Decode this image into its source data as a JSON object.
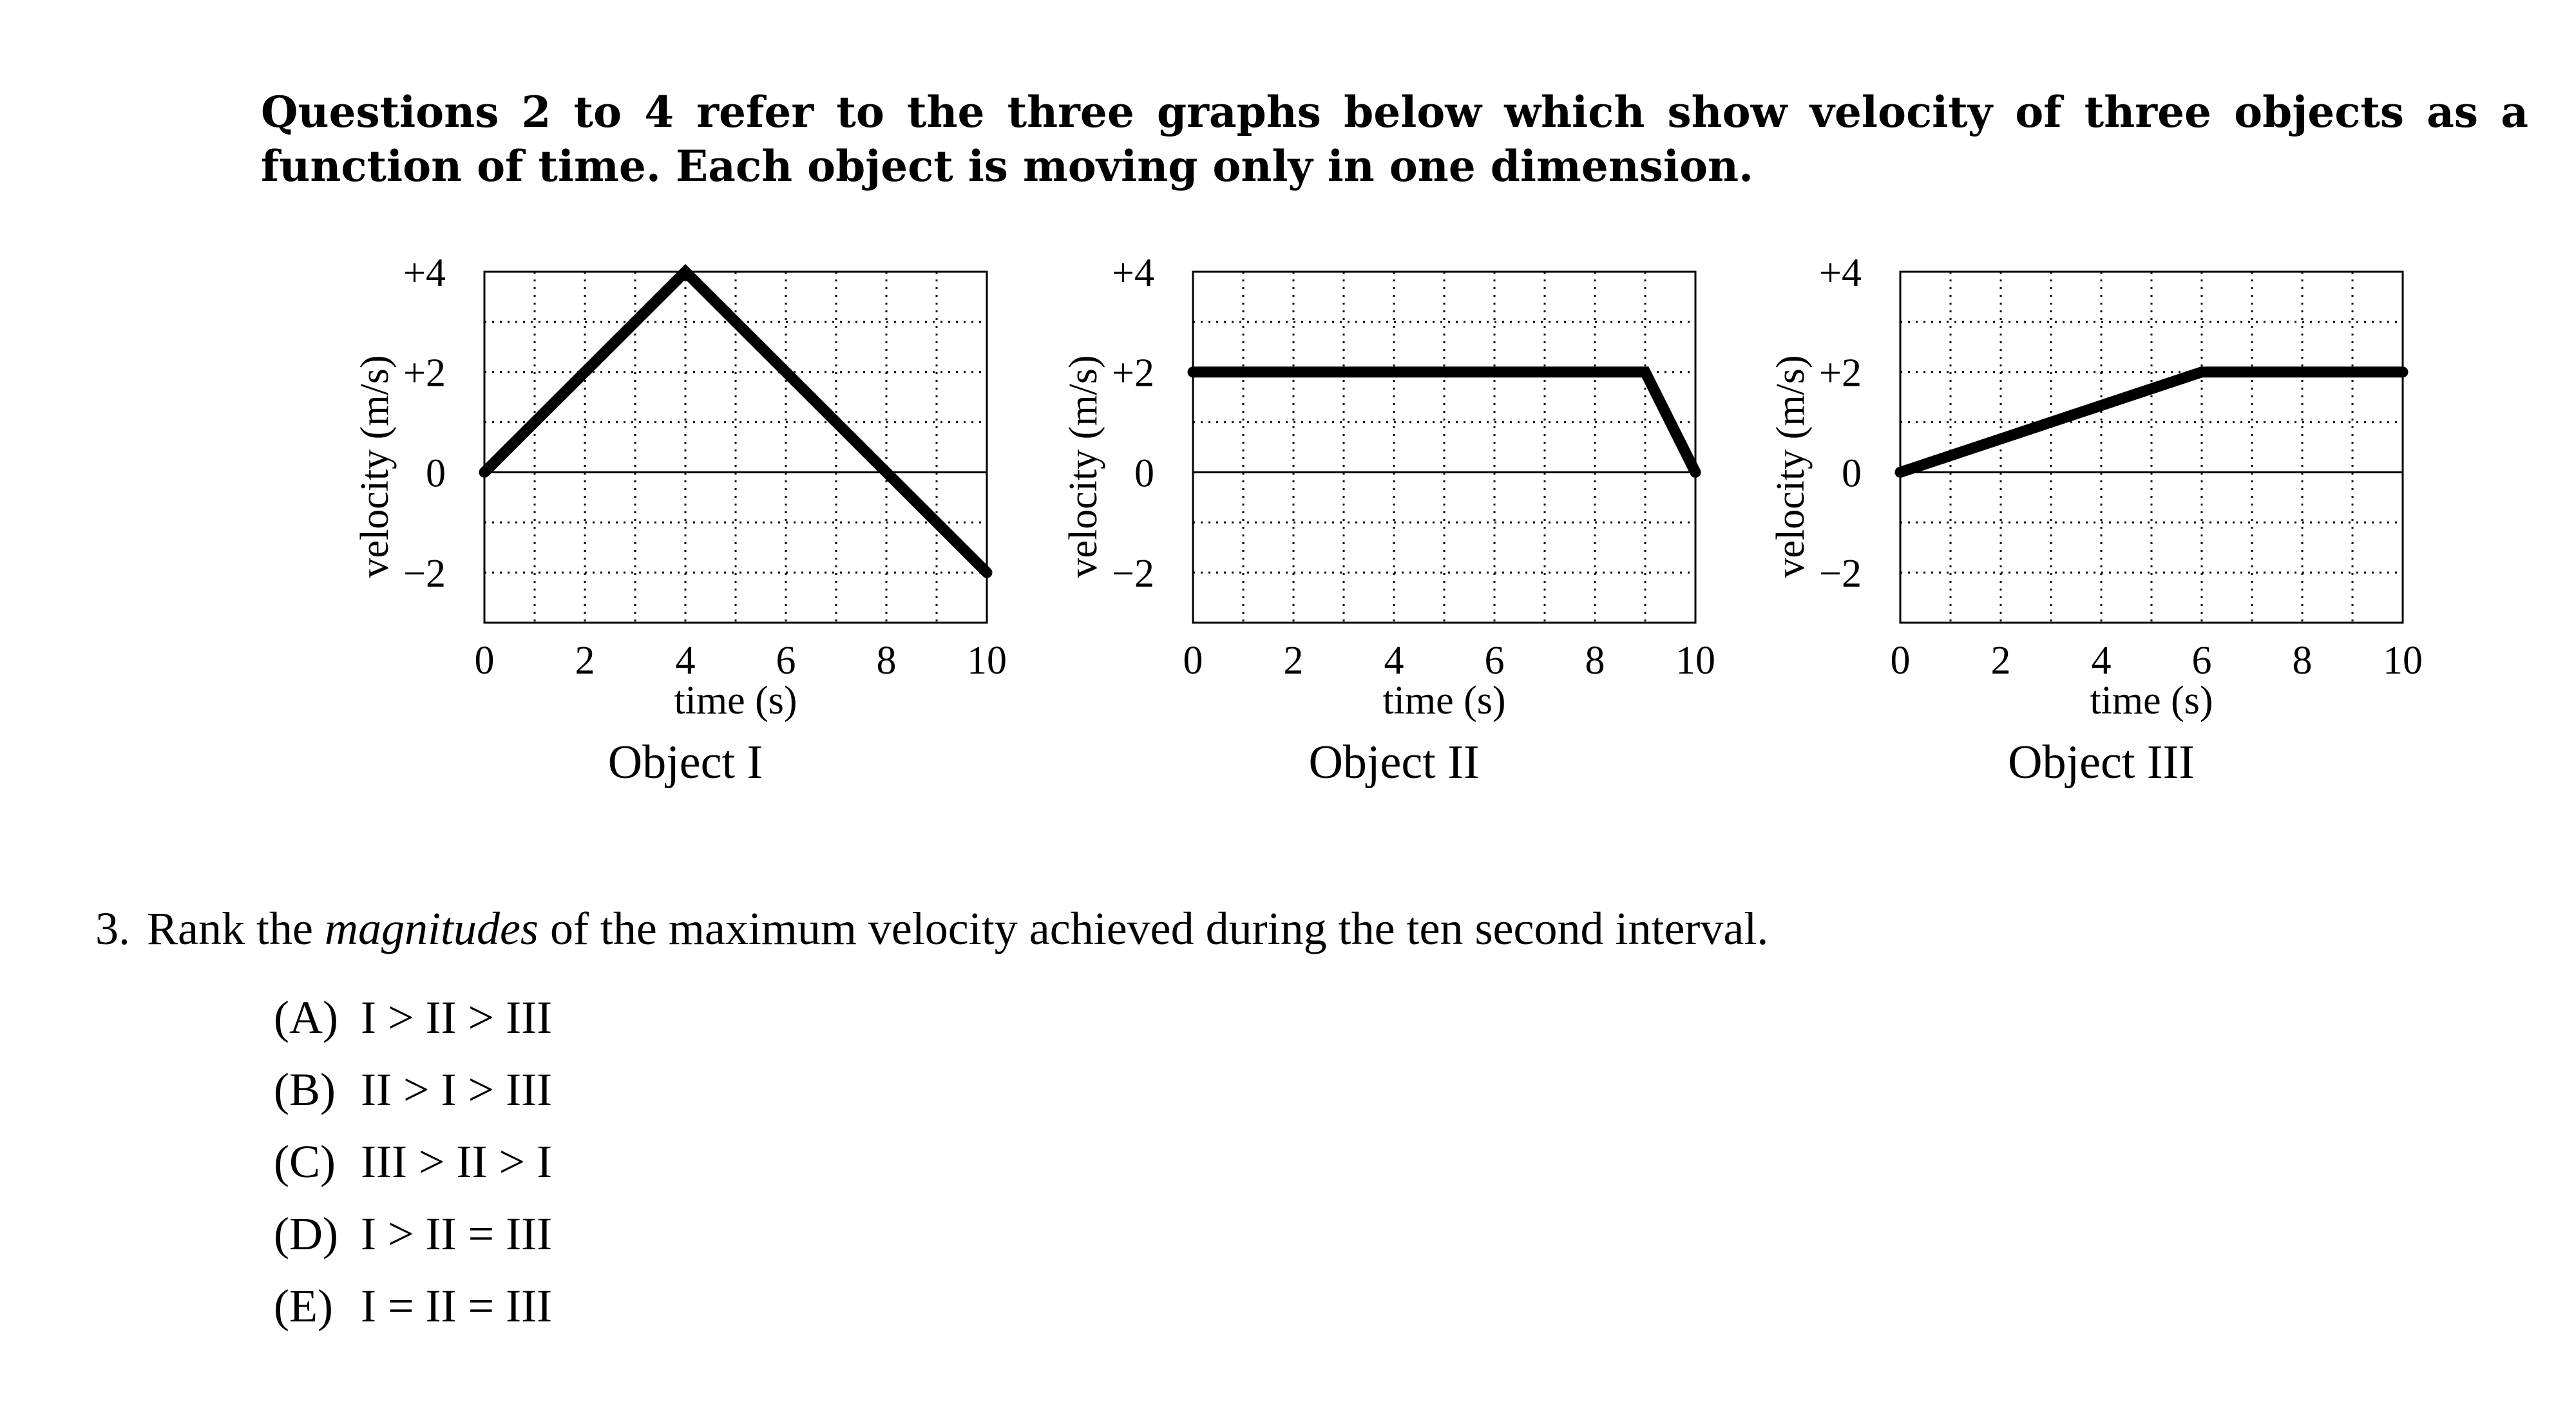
{
  "intro_text": "Questions 2 to 4 refer to the three graphs below which show velocity of three objects as a function of time. Each object is moving only in one dimension.",
  "question": {
    "number": "3.",
    "text_before": "Rank the",
    "text_emphasis": "magnitudes",
    "text_after": "of the maximum velocity achieved during the ten second interval.",
    "choices": [
      {
        "label": "(A)",
        "text": "I > II > III"
      },
      {
        "label": "(B)",
        "text": "II > I > III"
      },
      {
        "label": "(C)",
        "text": "III > II > I"
      },
      {
        "label": "(D)",
        "text": "I > II = III"
      },
      {
        "label": "(E)",
        "text": "I = II = III"
      }
    ]
  },
  "chart_data": [
    {
      "type": "line",
      "title": "Object I",
      "xlabel": "time (s)",
      "ylabel": "velocity (m/s)",
      "xlim": [
        0,
        10
      ],
      "ylim": [
        -3,
        4
      ],
      "x_ticks": [
        "0",
        "2",
        "4",
        "6",
        "8",
        "10"
      ],
      "y_ticks": [
        {
          "value": 4,
          "label": "+4"
        },
        {
          "value": 2,
          "label": "+2"
        },
        {
          "value": 0,
          "label": "0"
        },
        {
          "value": -2,
          "label": "−2"
        }
      ],
      "grid": true,
      "series": [
        {
          "x": [
            0,
            4,
            10
          ],
          "y": [
            0,
            4,
            -2
          ]
        }
      ]
    },
    {
      "type": "line",
      "title": "Object II",
      "xlabel": "time (s)",
      "ylabel": "velocity (m/s)",
      "xlim": [
        0,
        10
      ],
      "ylim": [
        -3,
        4
      ],
      "x_ticks": [
        "0",
        "2",
        "4",
        "6",
        "8",
        "10"
      ],
      "y_ticks": [
        {
          "value": 4,
          "label": "+4"
        },
        {
          "value": 2,
          "label": "+2"
        },
        {
          "value": 0,
          "label": "0"
        },
        {
          "value": -2,
          "label": "−2"
        }
      ],
      "grid": true,
      "series": [
        {
          "x": [
            0,
            9,
            10
          ],
          "y": [
            2,
            2,
            0
          ]
        }
      ]
    },
    {
      "type": "line",
      "title": "Object III",
      "xlabel": "time (s)",
      "ylabel": "velocity (m/s)",
      "xlim": [
        0,
        10
      ],
      "ylim": [
        -3,
        4
      ],
      "x_ticks": [
        "0",
        "2",
        "4",
        "6",
        "8",
        "10"
      ],
      "y_ticks": [
        {
          "value": 4,
          "label": "+4"
        },
        {
          "value": 2,
          "label": "+2"
        },
        {
          "value": 0,
          "label": "0"
        },
        {
          "value": -2,
          "label": "−2"
        }
      ],
      "grid": true,
      "series": [
        {
          "x": [
            0,
            6,
            10
          ],
          "y": [
            0,
            2,
            2
          ]
        }
      ]
    }
  ]
}
